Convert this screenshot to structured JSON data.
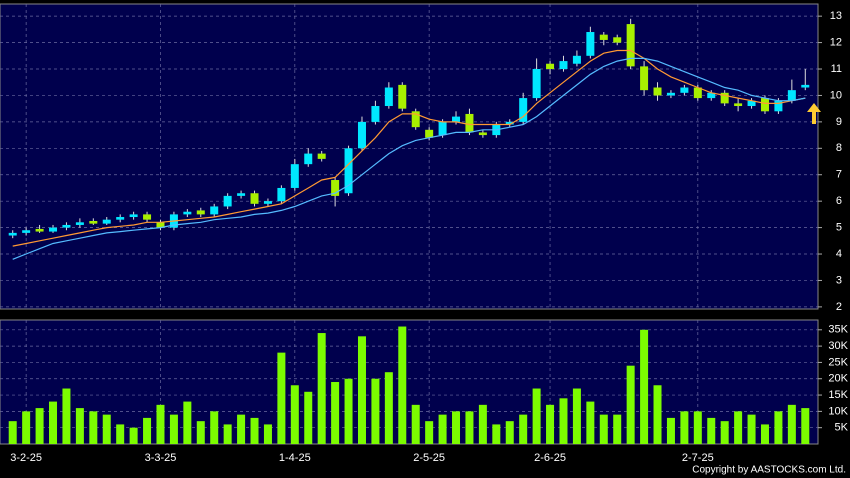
{
  "chart_data": {
    "type": "candlestick",
    "categories": [
      null,
      "3-2-25",
      null,
      null,
      null,
      null,
      null,
      null,
      null,
      null,
      null,
      "3-3-25",
      null,
      null,
      null,
      null,
      null,
      null,
      null,
      null,
      null,
      "1-4-25",
      null,
      null,
      null,
      null,
      null,
      null,
      null,
      null,
      null,
      "2-5-25",
      null,
      null,
      null,
      null,
      null,
      null,
      null,
      null,
      "2-6-25",
      null,
      null,
      null,
      null,
      null,
      null,
      null,
      null,
      null,
      null,
      "2-7-25",
      null,
      null,
      null,
      null,
      null,
      null,
      null,
      null
    ],
    "open": [
      4.7,
      4.8,
      4.95,
      4.85,
      5.0,
      5.1,
      5.25,
      5.15,
      5.3,
      5.4,
      5.5,
      5.2,
      5.0,
      5.5,
      5.65,
      5.5,
      5.8,
      6.2,
      6.3,
      5.9,
      6.0,
      6.5,
      7.4,
      7.8,
      6.8,
      6.3,
      8.0,
      9.0,
      9.6,
      10.4,
      9.4,
      8.7,
      8.5,
      9.0,
      9.3,
      8.6,
      8.5,
      8.9,
      9.0,
      9.9,
      11.2,
      11.0,
      11.2,
      11.5,
      12.3,
      12.2,
      12.7,
      11.1,
      10.3,
      10.0,
      10.1,
      10.3,
      9.9,
      10.1,
      9.7,
      9.6,
      9.9,
      9.4,
      9.8,
      10.3
    ],
    "high": [
      4.9,
      5.0,
      5.1,
      5.1,
      5.2,
      5.35,
      5.35,
      5.4,
      5.5,
      5.6,
      5.6,
      5.3,
      5.6,
      5.7,
      5.75,
      5.9,
      6.3,
      6.4,
      6.4,
      6.1,
      6.6,
      7.6,
      8.0,
      7.9,
      6.9,
      8.1,
      9.2,
      9.8,
      10.5,
      10.5,
      9.5,
      8.8,
      9.1,
      9.4,
      9.5,
      8.7,
      9.0,
      9.1,
      10.1,
      11.4,
      11.3,
      11.5,
      11.7,
      12.6,
      12.4,
      12.3,
      12.9,
      11.3,
      10.5,
      10.2,
      10.4,
      10.4,
      10.2,
      10.2,
      9.9,
      9.9,
      10.0,
      9.9,
      10.6,
      11.0
    ],
    "low": [
      4.6,
      4.7,
      4.8,
      4.8,
      4.9,
      5.0,
      5.1,
      5.1,
      5.2,
      5.3,
      5.2,
      4.9,
      4.9,
      5.4,
      5.4,
      5.4,
      5.7,
      6.1,
      5.8,
      5.8,
      5.9,
      6.4,
      7.3,
      7.5,
      5.8,
      6.2,
      7.9,
      8.9,
      9.5,
      9.4,
      8.7,
      8.3,
      8.4,
      8.9,
      8.5,
      8.4,
      8.4,
      8.8,
      8.9,
      9.8,
      10.8,
      10.9,
      11.1,
      11.4,
      11.9,
      11.9,
      11.0,
      10.0,
      9.8,
      9.9,
      10.0,
      9.8,
      9.8,
      9.6,
      9.4,
      9.5,
      9.3,
      9.3,
      9.7,
      10.2
    ],
    "close": [
      4.8,
      4.9,
      4.85,
      5.0,
      5.1,
      5.2,
      5.15,
      5.3,
      5.4,
      5.5,
      5.3,
      5.0,
      5.5,
      5.6,
      5.5,
      5.8,
      6.2,
      6.3,
      5.9,
      6.0,
      6.5,
      7.4,
      7.8,
      7.6,
      6.2,
      8.0,
      9.0,
      9.6,
      10.3,
      9.5,
      8.8,
      8.4,
      9.0,
      9.2,
      8.6,
      8.5,
      8.9,
      9.0,
      9.9,
      11.0,
      11.0,
      11.3,
      11.5,
      12.4,
      12.1,
      12.0,
      11.1,
      10.2,
      10.0,
      10.1,
      10.3,
      9.9,
      10.1,
      9.7,
      9.6,
      9.8,
      9.4,
      9.8,
      10.2,
      10.4
    ],
    "up_color": "#00e8ff",
    "down_color": "#a8f000",
    "lines": [
      {
        "color": "#ff9933",
        "values": [
          4.3,
          4.4,
          4.5,
          4.6,
          4.7,
          4.8,
          4.9,
          5.0,
          5.05,
          5.1,
          5.2,
          5.2,
          5.25,
          5.3,
          5.35,
          5.4,
          5.5,
          5.6,
          5.7,
          5.8,
          5.9,
          6.2,
          6.5,
          6.8,
          6.9,
          7.4,
          7.9,
          8.4,
          9.0,
          9.3,
          9.3,
          9.1,
          9.0,
          9.0,
          8.9,
          8.9,
          8.9,
          8.9,
          9.2,
          9.7,
          10.1,
          10.5,
          10.9,
          11.3,
          11.6,
          11.7,
          11.7,
          11.4,
          11.0,
          10.7,
          10.5,
          10.3,
          10.1,
          10.0,
          9.9,
          9.8,
          9.7,
          9.7,
          9.8,
          9.9
        ]
      },
      {
        "color": "#55bbff",
        "values": [
          3.8,
          4.0,
          4.2,
          4.4,
          4.5,
          4.6,
          4.7,
          4.8,
          4.85,
          4.9,
          4.95,
          5.0,
          5.1,
          5.15,
          5.2,
          5.3,
          5.35,
          5.4,
          5.5,
          5.55,
          5.65,
          5.8,
          6.0,
          6.2,
          6.3,
          6.6,
          7.0,
          7.4,
          7.8,
          8.1,
          8.3,
          8.4,
          8.5,
          8.6,
          8.6,
          8.7,
          8.7,
          8.8,
          8.9,
          9.2,
          9.6,
          10.0,
          10.4,
          10.8,
          11.1,
          11.3,
          11.4,
          11.4,
          11.3,
          11.1,
          10.9,
          10.7,
          10.5,
          10.3,
          10.2,
          10.0,
          9.9,
          9.8,
          9.8,
          9.9
        ]
      }
    ],
    "ylim": [
      1.92,
      13.46
    ],
    "yticks": [
      2,
      3,
      4,
      5,
      6,
      7,
      8,
      9,
      10,
      11,
      12,
      13
    ],
    "volume": {
      "color": "#7cfc00",
      "values": [
        7000,
        10000,
        11000,
        13000,
        17000,
        11000,
        10000,
        9000,
        6000,
        5000,
        8000,
        12000,
        9000,
        13000,
        7000,
        10000,
        6000,
        9000,
        8000,
        6000,
        28000,
        18000,
        16000,
        34000,
        19000,
        20000,
        33000,
        20000,
        22000,
        36000,
        12000,
        7000,
        9000,
        10000,
        10000,
        12000,
        6000,
        7000,
        9000,
        17000,
        12000,
        14000,
        17000,
        13000,
        9000,
        9000,
        24000,
        35000,
        18000,
        8000,
        10000,
        10000,
        8000,
        7000,
        10000,
        9000,
        6000,
        10000,
        12000,
        11000
      ],
      "ylim": [
        0,
        38000
      ],
      "yticks": [
        {
          "value": 5000,
          "label": "5K"
        },
        {
          "value": 10000,
          "label": "10K"
        },
        {
          "value": 15000,
          "label": "15K"
        },
        {
          "value": 20000,
          "label": "20K"
        },
        {
          "value": 25000,
          "label": "25K"
        },
        {
          "value": 30000,
          "label": "30K"
        },
        {
          "value": 35000,
          "label": "35K"
        }
      ]
    },
    "grid": true,
    "copyright": "Copyright by AASTOCKS.com Ltd."
  }
}
